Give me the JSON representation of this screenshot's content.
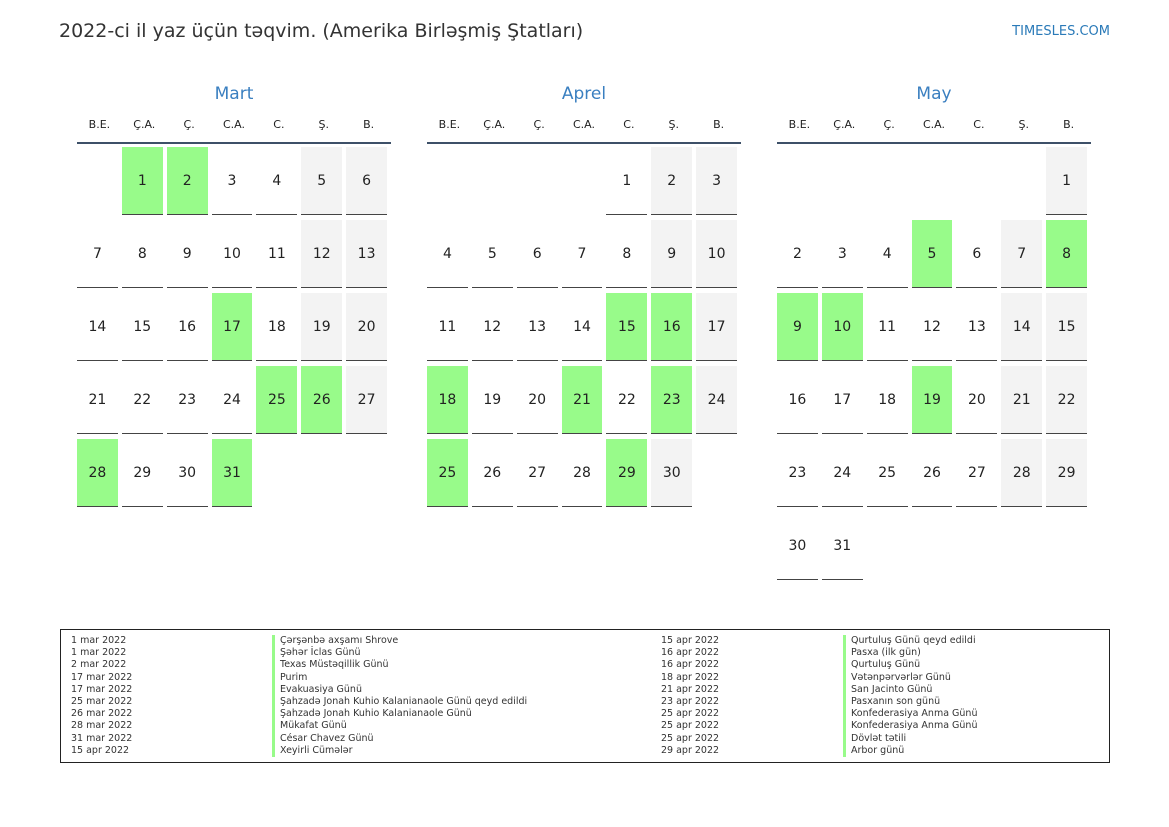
{
  "header": {
    "title": "2022-ci il yaz üçün təqvim. (Amerika Birləşmiş Ştatları)",
    "brand": "TIMESLES.COM"
  },
  "colors": {
    "holiday": "#98fb8a",
    "weekend": "#f3f3f3",
    "month_title": "#3a7fc0"
  },
  "weekdays": [
    "B.E.",
    "Ç.A.",
    "Ç.",
    "C.A.",
    "C.",
    "Ş.",
    "B."
  ],
  "months": [
    {
      "name": "Mart",
      "weeks": [
        [
          null,
          1,
          2,
          3,
          4,
          5,
          6
        ],
        [
          7,
          8,
          9,
          10,
          11,
          12,
          13
        ],
        [
          14,
          15,
          16,
          17,
          18,
          19,
          20
        ],
        [
          21,
          22,
          23,
          24,
          25,
          26,
          27
        ],
        [
          28,
          29,
          30,
          31,
          null,
          null,
          null
        ]
      ],
      "holidays": [
        1,
        2,
        17,
        25,
        26,
        28,
        31
      ]
    },
    {
      "name": "Aprel",
      "weeks": [
        [
          null,
          null,
          null,
          null,
          1,
          2,
          3
        ],
        [
          4,
          5,
          6,
          7,
          8,
          9,
          10
        ],
        [
          11,
          12,
          13,
          14,
          15,
          16,
          17
        ],
        [
          18,
          19,
          20,
          21,
          22,
          23,
          24
        ],
        [
          25,
          26,
          27,
          28,
          29,
          30,
          null
        ]
      ],
      "holidays": [
        15,
        16,
        18,
        21,
        23,
        25,
        29
      ]
    },
    {
      "name": "May",
      "weeks": [
        [
          null,
          null,
          null,
          null,
          null,
          null,
          1
        ],
        [
          2,
          3,
          4,
          5,
          6,
          7,
          8
        ],
        [
          9,
          10,
          11,
          12,
          13,
          14,
          15
        ],
        [
          16,
          17,
          18,
          19,
          20,
          21,
          22
        ],
        [
          23,
          24,
          25,
          26,
          27,
          28,
          29
        ],
        [
          30,
          31,
          null,
          null,
          null,
          null,
          null
        ]
      ],
      "holidays": [
        5,
        8,
        9,
        10,
        19
      ]
    }
  ],
  "legend": [
    [
      {
        "date": "1 mar 2022",
        "name": "Çərşənbə axşamı Shrove"
      },
      {
        "date": "1 mar 2022",
        "name": "Şəhər İclas Günü"
      },
      {
        "date": "2 mar 2022",
        "name": "Texas Müstəqillik Günü"
      },
      {
        "date": "17 mar 2022",
        "name": "Purim"
      },
      {
        "date": "17 mar 2022",
        "name": "Evakuasiya Günü"
      },
      {
        "date": "25 mar 2022",
        "name": "Şahzadə Jonah Kuhio Kalanianaole Günü qeyd edildi"
      },
      {
        "date": "26 mar 2022",
        "name": "Şahzadə Jonah Kuhio Kalanianaole Günü"
      },
      {
        "date": "28 mar 2022",
        "name": "Mükafat Günü"
      },
      {
        "date": "31 mar 2022",
        "name": "César Chavez Günü"
      },
      {
        "date": "15 apr 2022",
        "name": "Xeyirli Cümələr"
      }
    ],
    [
      {
        "date": "15 apr 2022",
        "name": "Qurtuluş Günü qeyd edildi"
      },
      {
        "date": "16 apr 2022",
        "name": "Pasxa (ilk gün)"
      },
      {
        "date": "16 apr 2022",
        "name": "Qurtuluş Günü"
      },
      {
        "date": "18 apr 2022",
        "name": "Vətənpərvərlər Günü"
      },
      {
        "date": "21 apr 2022",
        "name": "San Jacinto Günü"
      },
      {
        "date": "23 apr 2022",
        "name": "Pasxanın son günü"
      },
      {
        "date": "25 apr 2022",
        "name": "Konfederasiya Anma Günü"
      },
      {
        "date": "25 apr 2022",
        "name": "Konfederasiya Anma Günü"
      },
      {
        "date": "25 apr 2022",
        "name": "Dövlət tətili"
      },
      {
        "date": "29 apr 2022",
        "name": "Arbor günü"
      }
    ]
  ]
}
